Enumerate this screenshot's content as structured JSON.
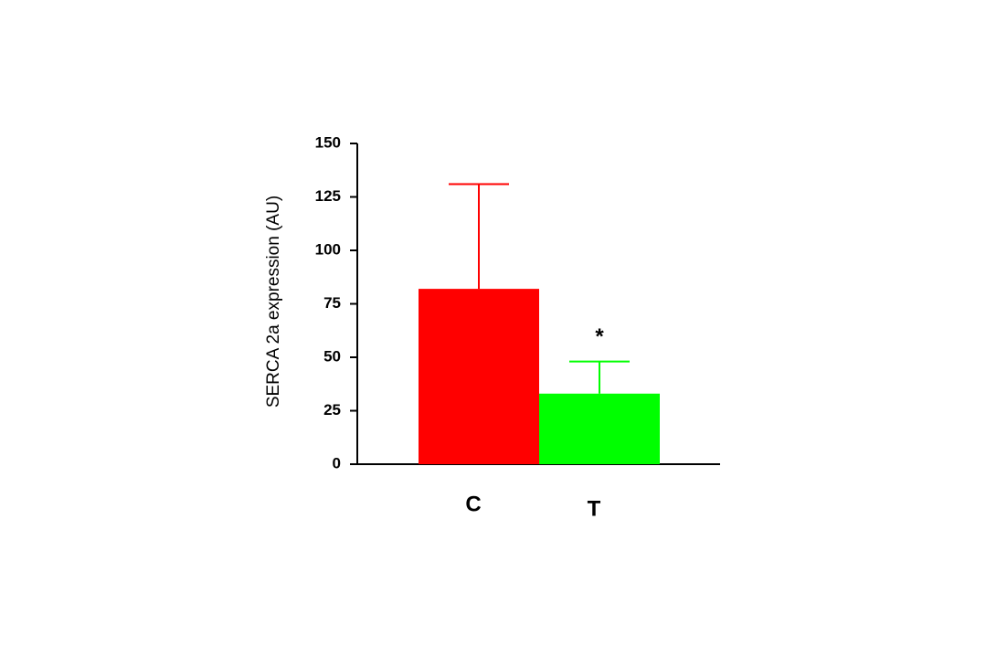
{
  "chart_data": {
    "type": "bar",
    "y_label": "SERCA 2a expression (AU)",
    "categories": [
      "C",
      "T"
    ],
    "values": [
      82,
      33
    ],
    "errors": [
      49,
      15
    ],
    "colors": [
      "#ff0000",
      "#00ff00"
    ],
    "ylim": [
      0,
      150
    ],
    "yticks": [
      0,
      25,
      50,
      75,
      100,
      125,
      150
    ],
    "annotations": [
      {
        "text": "*",
        "category": "T"
      }
    ]
  }
}
